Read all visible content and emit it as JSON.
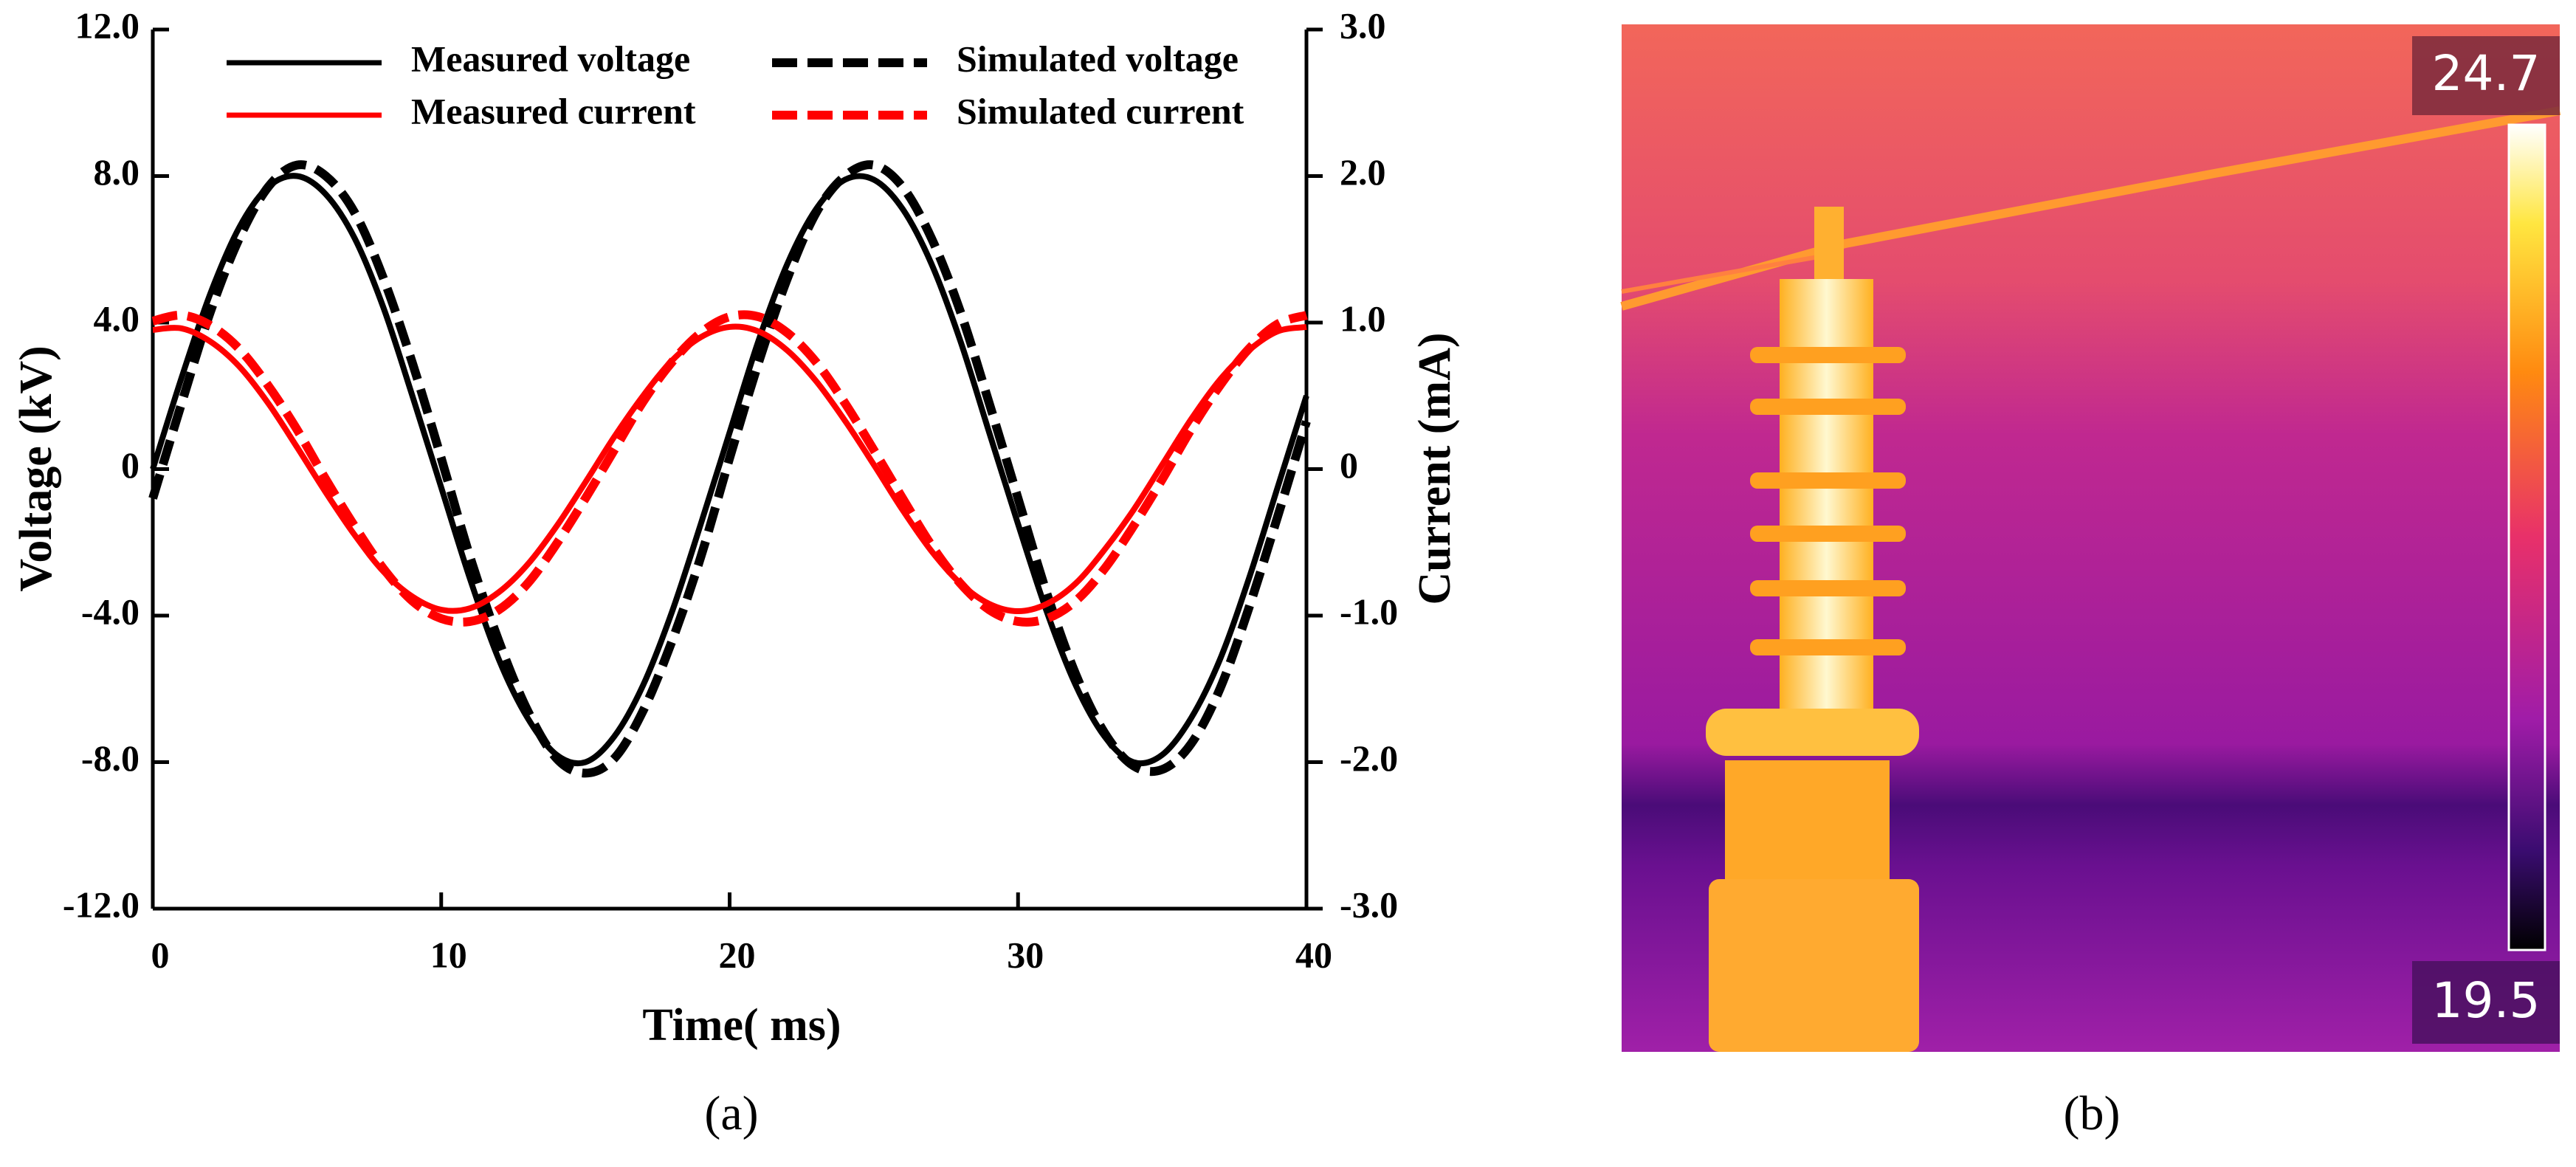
{
  "chart_data": {
    "type": "line",
    "caption": "(a)",
    "xlabel": "Time( ms)",
    "ylabel": "Voltage (kV)",
    "y2label": "Current (mA)",
    "x": [
      0,
      1,
      2,
      3,
      4,
      5,
      6,
      7,
      8,
      9,
      10,
      11,
      12,
      13,
      14,
      15,
      16,
      17,
      18,
      19,
      20,
      21,
      22,
      23,
      24,
      25,
      26,
      27,
      28,
      29,
      30,
      31,
      32,
      33,
      34,
      35,
      36,
      37,
      38,
      39,
      40
    ],
    "series": [
      {
        "name": "Measured voltage",
        "color": "#000000",
        "dashed": false,
        "values": [
          0,
          2.5,
          4.8,
          6.6,
          7.7,
          8.0,
          7.5,
          6.3,
          4.4,
          2.0,
          -0.5,
          -3.0,
          -5.2,
          -6.8,
          -7.8,
          -8.0,
          -7.3,
          -5.9,
          -3.9,
          -1.5,
          1.0,
          3.5,
          5.6,
          7.1,
          7.9,
          7.9,
          7.1,
          5.6,
          3.5,
          1.0,
          -1.5,
          -3.9,
          -5.9,
          -7.3,
          -8.0,
          -7.8,
          -6.8,
          -5.2,
          -3.0,
          -0.5,
          2.0
        ]
      },
      {
        "name": "Simulated voltage",
        "color": "#000000",
        "dashed": true,
        "values": [
          -0.8,
          1.8,
          4.3,
          6.3,
          7.7,
          8.3,
          8.0,
          7.0,
          5.2,
          2.9,
          0.3,
          -2.4,
          -4.7,
          -6.6,
          -7.9,
          -8.3,
          -7.9,
          -6.6,
          -4.7,
          -2.4,
          0.3,
          2.9,
          5.2,
          7.0,
          8.0,
          8.3,
          7.7,
          6.3,
          4.3,
          1.8,
          -0.8,
          -3.4,
          -5.6,
          -7.2,
          -8.1,
          -8.2,
          -7.5,
          -6.0,
          -3.8,
          -1.3,
          1.3
        ]
      },
      {
        "name": "Measured current",
        "color": "#ff0000",
        "dashed": false,
        "axis": "y2",
        "values": [
          0.95,
          0.96,
          0.87,
          0.7,
          0.45,
          0.15,
          -0.16,
          -0.45,
          -0.7,
          -0.87,
          -0.96,
          -0.95,
          -0.84,
          -0.65,
          -0.39,
          -0.09,
          0.22,
          0.5,
          0.74,
          0.9,
          0.97,
          0.94,
          0.81,
          0.6,
          0.33,
          0.03,
          -0.28,
          -0.56,
          -0.78,
          -0.92,
          -0.97,
          -0.92,
          -0.78,
          -0.55,
          -0.28,
          0.03,
          0.34,
          0.61,
          0.81,
          0.94,
          0.97
        ]
      },
      {
        "name": "Simulated current",
        "color": "#ff0000",
        "dashed": true,
        "axis": "y2",
        "values": [
          1.01,
          1.05,
          0.98,
          0.82,
          0.57,
          0.27,
          -0.07,
          -0.39,
          -0.68,
          -0.9,
          -1.02,
          -1.04,
          -0.96,
          -0.78,
          -0.51,
          -0.2,
          0.13,
          0.46,
          0.73,
          0.93,
          1.04,
          1.04,
          0.93,
          0.73,
          0.45,
          0.13,
          -0.2,
          -0.52,
          -0.78,
          -0.96,
          -1.04,
          -1.02,
          -0.9,
          -0.68,
          -0.39,
          -0.07,
          0.27,
          0.57,
          0.82,
          0.99,
          1.05
        ]
      }
    ],
    "xlim": [
      0,
      40
    ],
    "xticks": [
      0,
      10,
      20,
      30,
      40
    ],
    "ylim": [
      -12,
      12
    ],
    "yticks": [
      {
        "value": 12,
        "label": "12.0"
      },
      {
        "value": 8,
        "label": "8.0"
      },
      {
        "value": 4,
        "label": "4.0"
      },
      0,
      {
        "value": -4,
        "label": "-4.0"
      },
      {
        "value": -8,
        "label": "-8.0"
      },
      {
        "value": -12,
        "label": "-12.0"
      }
    ],
    "y2lim": [
      -3,
      3
    ],
    "y2ticks": [
      {
        "value": 3,
        "label": "3.0"
      },
      {
        "value": 2,
        "label": "2.0"
      },
      {
        "value": 1,
        "label": "1.0"
      },
      0,
      {
        "value": -1,
        "label": "-1.0"
      },
      {
        "value": -2,
        "label": "-2.0"
      },
      {
        "value": -3,
        "label": "-3.0"
      }
    ],
    "legend": "top"
  },
  "panel_b": {
    "caption": "(b)",
    "scale_max": 24.7,
    "scale_min": 19.5
  }
}
